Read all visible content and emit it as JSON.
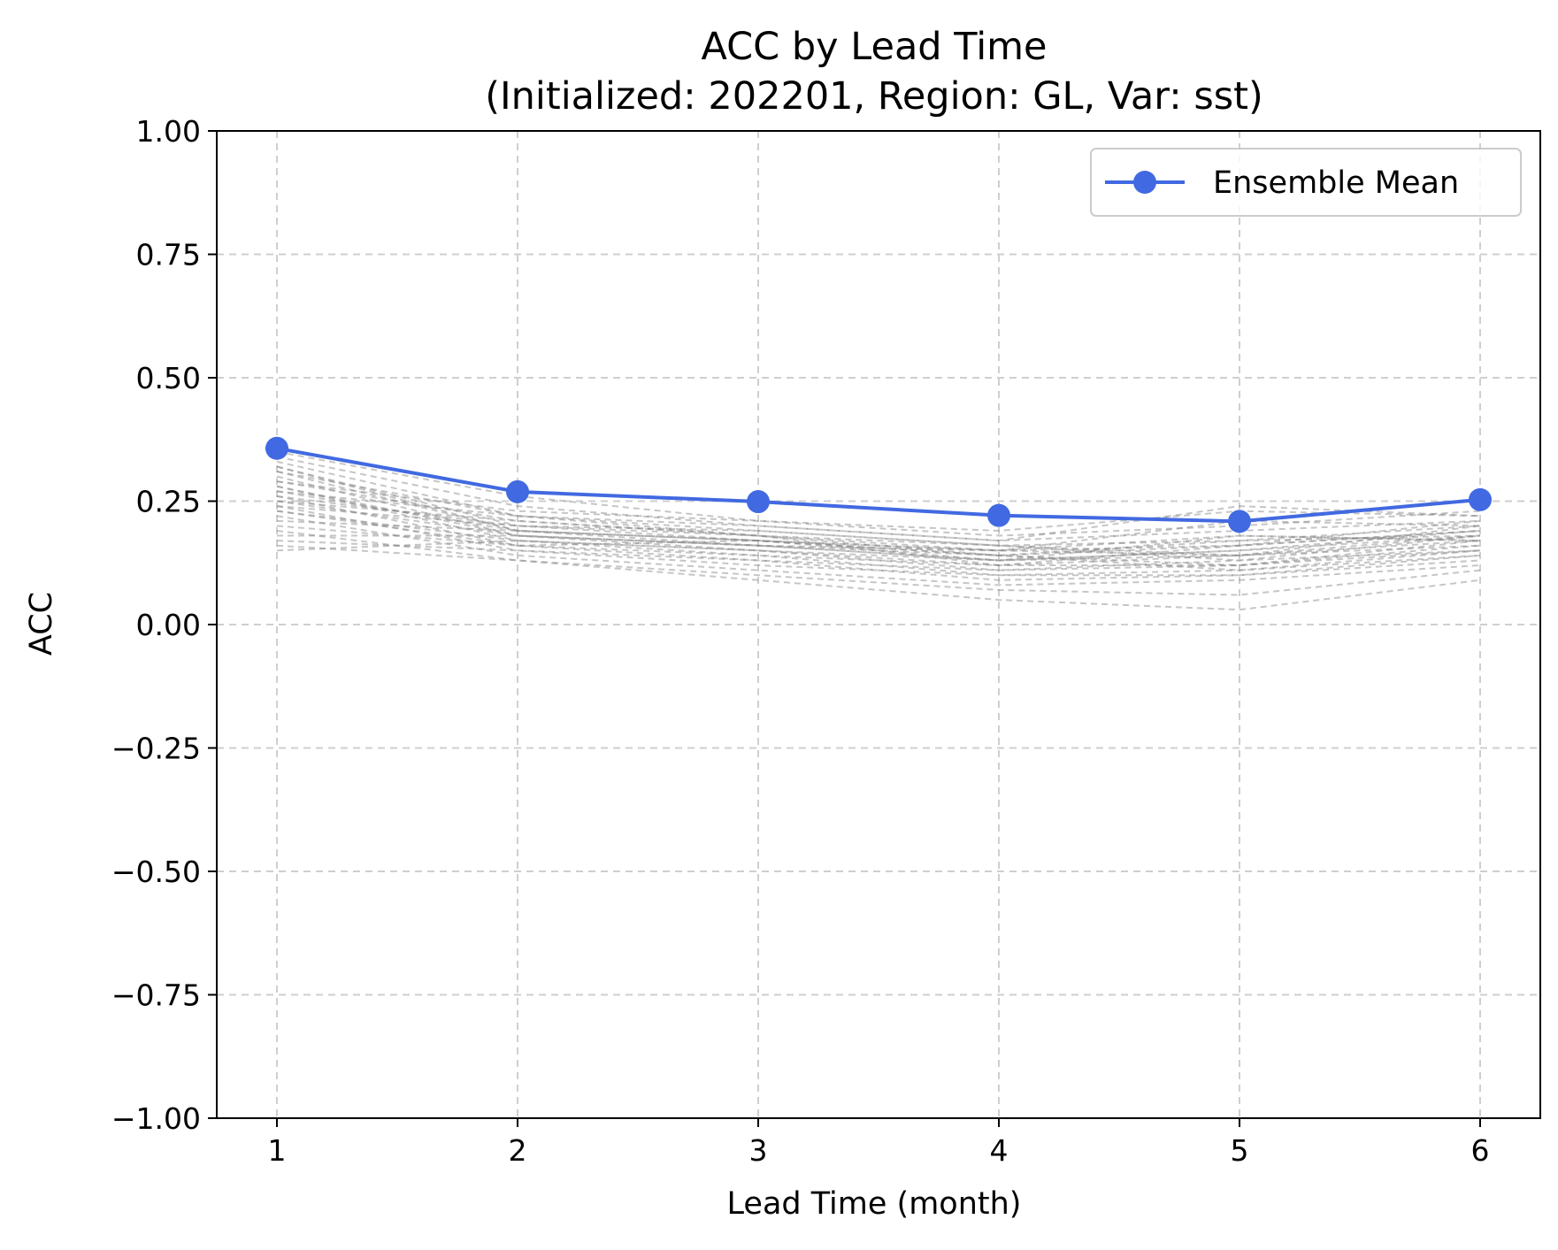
{
  "chart_data": {
    "type": "line",
    "title_line1": "ACC by Lead Time",
    "title_line2": "(Initialized: 202201, Region: GL, Var: sst)",
    "xlabel": "Lead Time (month)",
    "ylabel": "ACC",
    "x": [
      1,
      2,
      3,
      4,
      5,
      6
    ],
    "xtick_labels": [
      "1",
      "2",
      "3",
      "4",
      "5",
      "6"
    ],
    "xlim": [
      0.75,
      6.25
    ],
    "ylim": [
      -1.0,
      1.0
    ],
    "ytick_values": [
      -1.0,
      -0.75,
      -0.5,
      -0.25,
      0.0,
      0.25,
      0.5,
      0.75,
      1.0
    ],
    "ytick_labels": [
      "−1.00",
      "−0.75",
      "−0.50",
      "−0.25",
      "0.00",
      "0.25",
      "0.50",
      "0.75",
      "1.00"
    ],
    "grid": true,
    "legend_placement": "top-right",
    "series": [
      {
        "name": "Ensemble Mean",
        "color": "#4169E1",
        "values": [
          0.357,
          0.269,
          0.249,
          0.221,
          0.209,
          0.253
        ]
      }
    ],
    "members": {
      "color": "#808080",
      "values": [
        [
          0.35,
          0.26,
          0.21,
          0.19,
          0.23,
          0.22
        ],
        [
          0.34,
          0.24,
          0.2,
          0.17,
          0.19,
          0.21
        ],
        [
          0.33,
          0.22,
          0.19,
          0.16,
          0.17,
          0.2
        ],
        [
          0.32,
          0.2,
          0.18,
          0.14,
          0.16,
          0.19
        ],
        [
          0.31,
          0.19,
          0.17,
          0.15,
          0.18,
          0.17
        ],
        [
          0.3,
          0.18,
          0.16,
          0.13,
          0.15,
          0.18
        ],
        [
          0.29,
          0.21,
          0.18,
          0.12,
          0.14,
          0.16
        ],
        [
          0.28,
          0.17,
          0.15,
          0.11,
          0.13,
          0.15
        ],
        [
          0.27,
          0.19,
          0.17,
          0.14,
          0.12,
          0.17
        ],
        [
          0.26,
          0.16,
          0.14,
          0.1,
          0.11,
          0.14
        ],
        [
          0.25,
          0.18,
          0.16,
          0.13,
          0.15,
          0.19
        ],
        [
          0.24,
          0.15,
          0.13,
          0.09,
          0.1,
          0.13
        ],
        [
          0.24,
          0.2,
          0.19,
          0.16,
          0.14,
          0.2
        ],
        [
          0.23,
          0.17,
          0.14,
          0.12,
          0.12,
          0.16
        ],
        [
          0.22,
          0.14,
          0.11,
          0.08,
          0.09,
          0.12
        ],
        [
          0.21,
          0.19,
          0.17,
          0.15,
          0.16,
          0.21
        ],
        [
          0.2,
          0.16,
          0.13,
          0.11,
          0.12,
          0.15
        ],
        [
          0.19,
          0.13,
          0.09,
          0.05,
          0.03,
          0.09
        ],
        [
          0.18,
          0.18,
          0.16,
          0.14,
          0.17,
          0.18
        ],
        [
          0.17,
          0.15,
          0.12,
          0.1,
          0.1,
          0.14
        ],
        [
          0.16,
          0.13,
          0.1,
          0.07,
          0.06,
          0.11
        ],
        [
          0.15,
          0.17,
          0.15,
          0.13,
          0.14,
          0.17
        ],
        [
          0.29,
          0.23,
          0.21,
          0.18,
          0.2,
          0.23
        ],
        [
          0.27,
          0.22,
          0.2,
          0.17,
          0.24,
          0.22
        ],
        [
          0.25,
          0.21,
          0.18,
          0.15,
          0.21,
          0.2
        ],
        [
          0.31,
          0.22,
          0.18,
          0.16,
          0.13,
          0.18
        ],
        [
          0.28,
          0.18,
          0.15,
          0.12,
          0.16,
          0.19
        ],
        [
          0.26,
          0.2,
          0.17,
          0.14,
          0.11,
          0.15
        ],
        [
          0.23,
          0.16,
          0.17,
          0.13,
          0.18,
          0.17
        ],
        [
          0.32,
          0.19,
          0.16,
          0.15,
          0.14,
          0.18
        ]
      ]
    }
  }
}
